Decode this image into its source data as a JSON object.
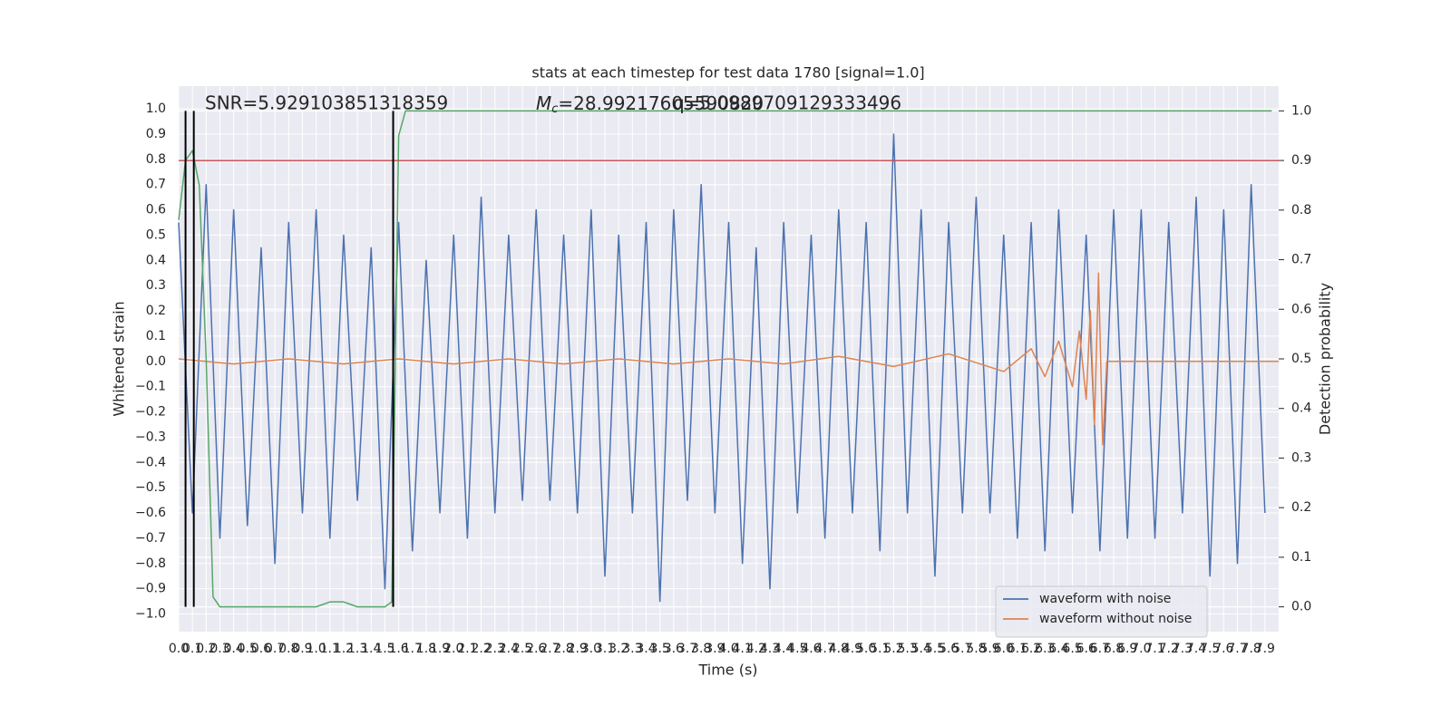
{
  "chart_data": {
    "type": "line",
    "title": "stats at each timestep for test data 1780 [signal=1.0]",
    "xlabel": "Time (s)",
    "ylabel": "Whitened strain",
    "y2label": "Detection probability",
    "annotations": [
      {
        "text": "SNR=5.929103851318359"
      },
      {
        "symbol": "M",
        "subscript": "c",
        "text": "=28.99217605590820"
      },
      {
        "text": "q=5.0989709129333496"
      }
    ],
    "xlim": [
      0,
      8
    ],
    "ylim": [
      -1.07,
      1.09
    ],
    "y2lim": [
      -0.05,
      1.05
    ],
    "grid": true,
    "legend": "lower right",
    "xticks": [
      {
        "value": 0,
        "label": "0.0"
      },
      {
        "value": 0.1,
        "label": "0.1"
      },
      {
        "value": 0.2,
        "label": "0.2"
      },
      {
        "value": 0.3,
        "label": "0.3"
      },
      {
        "value": 0.4,
        "label": "0.4"
      },
      {
        "value": 0.5,
        "label": "0.5"
      },
      {
        "value": 0.6,
        "label": "0.6"
      },
      {
        "value": 0.7,
        "label": "0.7"
      },
      {
        "value": 0.8,
        "label": "0.8"
      },
      {
        "value": 0.9,
        "label": "0.9"
      },
      {
        "value": 1,
        "label": "1.0"
      },
      {
        "value": 1.1,
        "label": "1.1"
      },
      {
        "value": 1.2,
        "label": "1.2"
      },
      {
        "value": 1.3,
        "label": "1.3"
      },
      {
        "value": 1.4,
        "label": "1.4"
      },
      {
        "value": 1.5,
        "label": "1.5"
      },
      {
        "value": 1.6,
        "label": "1.6"
      },
      {
        "value": 1.7,
        "label": "1.7"
      },
      {
        "value": 1.8,
        "label": "1.8"
      },
      {
        "value": 1.9,
        "label": "1.9"
      },
      {
        "value": 2,
        "label": "2.0"
      },
      {
        "value": 2.1,
        "label": "2.1"
      },
      {
        "value": 2.2,
        "label": "2.2"
      },
      {
        "value": 2.3,
        "label": "2.3"
      },
      {
        "value": 2.4,
        "label": "2.4"
      },
      {
        "value": 2.5,
        "label": "2.5"
      },
      {
        "value": 2.6,
        "label": "2.6"
      },
      {
        "value": 2.7,
        "label": "2.7"
      },
      {
        "value": 2.8,
        "label": "2.8"
      },
      {
        "value": 2.9,
        "label": "2.9"
      },
      {
        "value": 3,
        "label": "3.0"
      },
      {
        "value": 3.1,
        "label": "3.1"
      },
      {
        "value": 3.2,
        "label": "3.2"
      },
      {
        "value": 3.3,
        "label": "3.3"
      },
      {
        "value": 3.4,
        "label": "3.4"
      },
      {
        "value": 3.5,
        "label": "3.5"
      },
      {
        "value": 3.6,
        "label": "3.6"
      },
      {
        "value": 3.7,
        "label": "3.7"
      },
      {
        "value": 3.8,
        "label": "3.8"
      },
      {
        "value": 3.9,
        "label": "3.9"
      },
      {
        "value": 4,
        "label": "4.0"
      },
      {
        "value": 4.1,
        "label": "4.1"
      },
      {
        "value": 4.2,
        "label": "4.2"
      },
      {
        "value": 4.3,
        "label": "4.3"
      },
      {
        "value": 4.4,
        "label": "4.4"
      },
      {
        "value": 4.5,
        "label": "4.5"
      },
      {
        "value": 4.6,
        "label": "4.6"
      },
      {
        "value": 4.7,
        "label": "4.7"
      },
      {
        "value": 4.8,
        "label": "4.8"
      },
      {
        "value": 4.9,
        "label": "4.9"
      },
      {
        "value": 5,
        "label": "5.0"
      },
      {
        "value": 5.1,
        "label": "5.1"
      },
      {
        "value": 5.2,
        "label": "5.2"
      },
      {
        "value": 5.3,
        "label": "5.3"
      },
      {
        "value": 5.4,
        "label": "5.4"
      },
      {
        "value": 5.5,
        "label": "5.5"
      },
      {
        "value": 5.6,
        "label": "5.6"
      },
      {
        "value": 5.7,
        "label": "5.7"
      },
      {
        "value": 5.8,
        "label": "5.8"
      },
      {
        "value": 5.9,
        "label": "5.9"
      },
      {
        "value": 6,
        "label": "6.0"
      },
      {
        "value": 6.1,
        "label": "6.1"
      },
      {
        "value": 6.2,
        "label": "6.2"
      },
      {
        "value": 6.3,
        "label": "6.3"
      },
      {
        "value": 6.4,
        "label": "6.4"
      },
      {
        "value": 6.5,
        "label": "6.5"
      },
      {
        "value": 6.6,
        "label": "6.6"
      },
      {
        "value": 6.7,
        "label": "6.7"
      },
      {
        "value": 6.8,
        "label": "6.8"
      },
      {
        "value": 6.9,
        "label": "6.9"
      },
      {
        "value": 7,
        "label": "7.0"
      },
      {
        "value": 7.1,
        "label": "7.1"
      },
      {
        "value": 7.2,
        "label": "7.2"
      },
      {
        "value": 7.3,
        "label": "7.3"
      },
      {
        "value": 7.4,
        "label": "7.4"
      },
      {
        "value": 7.5,
        "label": "7.5"
      },
      {
        "value": 7.6,
        "label": "7.6"
      },
      {
        "value": 7.7,
        "label": "7.7"
      },
      {
        "value": 7.8,
        "label": "7.8"
      },
      {
        "value": 7.9,
        "label": "7.9"
      }
    ],
    "yticks": [
      {
        "value": -1,
        "label": "−1.0"
      },
      {
        "value": -0.9,
        "label": "−0.9"
      },
      {
        "value": -0.8,
        "label": "−0.8"
      },
      {
        "value": -0.7,
        "label": "−0.7"
      },
      {
        "value": -0.6,
        "label": "−0.6"
      },
      {
        "value": -0.5,
        "label": "−0.5"
      },
      {
        "value": -0.4,
        "label": "−0.4"
      },
      {
        "value": -0.3,
        "label": "−0.3"
      },
      {
        "value": -0.2,
        "label": "−0.2"
      },
      {
        "value": -0.1,
        "label": "−0.1"
      },
      {
        "value": 0,
        "label": "0.0"
      },
      {
        "value": 0.1,
        "label": "0.1"
      },
      {
        "value": 0.2,
        "label": "0.2"
      },
      {
        "value": 0.3,
        "label": "0.3"
      },
      {
        "value": 0.4,
        "label": "0.4"
      },
      {
        "value": 0.5,
        "label": "0.5"
      },
      {
        "value": 0.6,
        "label": "0.6"
      },
      {
        "value": 0.7,
        "label": "0.7"
      },
      {
        "value": 0.8,
        "label": "0.8"
      },
      {
        "value": 0.9,
        "label": "0.9"
      },
      {
        "value": 1,
        "label": "1.0"
      }
    ],
    "y2ticks": [
      {
        "value": 0,
        "label": "0.0"
      },
      {
        "value": 0.1,
        "label": "0.1"
      },
      {
        "value": 0.2,
        "label": "0.2"
      },
      {
        "value": 0.3,
        "label": "0.3"
      },
      {
        "value": 0.4,
        "label": "0.4"
      },
      {
        "value": 0.5,
        "label": "0.5"
      },
      {
        "value": 0.6,
        "label": "0.6"
      },
      {
        "value": 0.7,
        "label": "0.7"
      },
      {
        "value": 0.8,
        "label": "0.8"
      },
      {
        "value": 0.9,
        "label": "0.9"
      },
      {
        "value": 1,
        "label": "1.0"
      }
    ],
    "series": [
      {
        "name": "waveform with noise",
        "color": "#4c72b0",
        "x": [
          0,
          0.1,
          0.2,
          0.3,
          0.4,
          0.5,
          0.6,
          0.7,
          0.8,
          0.9,
          1,
          1.1,
          1.2,
          1.3,
          1.4,
          1.5,
          1.6,
          1.7,
          1.8,
          1.9,
          2,
          2.1,
          2.2,
          2.3,
          2.4,
          2.5,
          2.6,
          2.7,
          2.8,
          2.9,
          3,
          3.1,
          3.2,
          3.3,
          3.4,
          3.5,
          3.6,
          3.7,
          3.8,
          3.9,
          4,
          4.1,
          4.2,
          4.3,
          4.4,
          4.5,
          4.6,
          4.7,
          4.8,
          4.9,
          5,
          5.1,
          5.2,
          5.3,
          5.4,
          5.5,
          5.6,
          5.7,
          5.8,
          5.9,
          6,
          6.1,
          6.2,
          6.3,
          6.4,
          6.5,
          6.6,
          6.7,
          6.8,
          6.9,
          7,
          7.1,
          7.2,
          7.3,
          7.4,
          7.5,
          7.6,
          7.7,
          7.8,
          7.9
        ],
        "values": [
          0.55,
          -0.6,
          0.7,
          -0.7,
          0.6,
          -0.65,
          0.45,
          -0.8,
          0.55,
          -0.6,
          0.6,
          -0.7,
          0.5,
          -0.55,
          0.45,
          -0.9,
          0.55,
          -0.75,
          0.4,
          -0.6,
          0.5,
          -0.7,
          0.65,
          -0.6,
          0.5,
          -0.55,
          0.6,
          -0.55,
          0.5,
          -0.6,
          0.6,
          -0.85,
          0.5,
          -0.6,
          0.55,
          -0.95,
          0.6,
          -0.55,
          0.7,
          -0.6,
          0.55,
          -0.8,
          0.45,
          -0.9,
          0.55,
          -0.6,
          0.5,
          -0.7,
          0.6,
          -0.6,
          0.55,
          -0.75,
          0.9,
          -0.6,
          0.6,
          -0.85,
          0.55,
          -0.6,
          0.65,
          -0.6,
          0.5,
          -0.7,
          0.55,
          -0.75,
          0.6,
          -0.6,
          0.5,
          -0.75,
          0.6,
          -0.7,
          0.6,
          -0.7,
          0.55,
          -0.6,
          0.65,
          -0.85,
          0.6,
          -0.8,
          0.7,
          -0.6
        ]
      },
      {
        "name": "waveform without noise",
        "color": "#dd8452",
        "x": [
          0,
          0.4,
          0.8,
          1.2,
          1.6,
          2,
          2.4,
          2.8,
          3.2,
          3.6,
          4,
          4.4,
          4.8,
          5.2,
          5.6,
          6,
          6.2,
          6.3,
          6.4,
          6.5,
          6.55,
          6.6,
          6.63,
          6.66,
          6.69,
          6.72,
          6.75,
          8
        ],
        "values": [
          0.01,
          -0.01,
          0.01,
          -0.01,
          0.01,
          -0.01,
          0.01,
          -0.01,
          0.01,
          -0.01,
          0.01,
          -0.01,
          0.02,
          -0.02,
          0.03,
          -0.04,
          0.05,
          -0.06,
          0.08,
          -0.1,
          0.12,
          -0.15,
          0.2,
          -0.25,
          0.35,
          -0.33,
          0,
          0
        ]
      },
      {
        "color": "#55a868",
        "axis": "y2",
        "x": [
          0,
          0.05,
          0.1,
          0.15,
          0.2,
          0.25,
          0.3,
          1,
          1.1,
          1.2,
          1.3,
          1.5,
          1.55,
          1.6,
          1.65,
          7.95
        ],
        "values": [
          0.78,
          0.9,
          0.92,
          0.85,
          0.5,
          0.02,
          0,
          0,
          0.01,
          0.01,
          0,
          0,
          0.01,
          0.95,
          1,
          1
        ]
      }
    ],
    "threshold": {
      "value": 0.9,
      "axis": "y2",
      "color": "#c44e52"
    },
    "vlines": {
      "x": [
        0.05,
        0.11,
        1.56
      ],
      "range": [
        0,
        1
      ],
      "axis": "y2",
      "color": "#000000"
    }
  }
}
